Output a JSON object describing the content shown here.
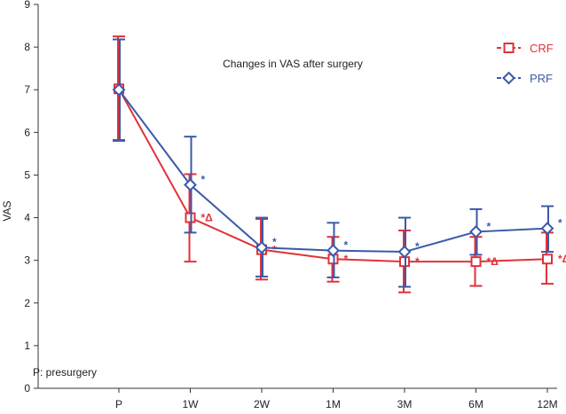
{
  "chart_data": {
    "type": "line",
    "title": "Changes in VAS after surgery",
    "xlabel": "",
    "ylabel": "VAS",
    "ylim": [
      0,
      9
    ],
    "yticks": [
      "0",
      "1",
      "2",
      "3",
      "4",
      "5",
      "6",
      "7",
      "8",
      "9"
    ],
    "categories": [
      "P",
      "1W",
      "2W",
      "1M",
      "3M",
      "6M",
      "12M"
    ],
    "legend_position": "top-right",
    "annotation": "P: presurgery",
    "series": [
      {
        "name": "CRF",
        "color": "#e0323a",
        "marker": "square",
        "values": [
          7.02,
          4.0,
          3.25,
          3.03,
          2.97,
          2.97,
          3.03
        ],
        "error_low": [
          5.8,
          2.97,
          2.55,
          2.5,
          2.25,
          2.4,
          2.45
        ],
        "error_high": [
          8.25,
          5.02,
          3.97,
          3.55,
          3.7,
          3.55,
          3.65
        ],
        "marks": [
          "",
          "*Δ",
          "*",
          "*",
          "*",
          "*Δ",
          "*Δ"
        ]
      },
      {
        "name": "PRF",
        "color": "#3a5aa8",
        "marker": "diamond",
        "values": [
          7.0,
          4.77,
          3.3,
          3.23,
          3.2,
          3.67,
          3.75
        ],
        "error_low": [
          5.82,
          3.65,
          2.62,
          2.6,
          2.38,
          3.13,
          3.2
        ],
        "error_high": [
          8.18,
          5.9,
          4.0,
          3.88,
          4.0,
          4.2,
          4.27
        ],
        "marks": [
          "",
          "*",
          "*",
          "*",
          "*",
          "*",
          "*"
        ]
      }
    ]
  }
}
